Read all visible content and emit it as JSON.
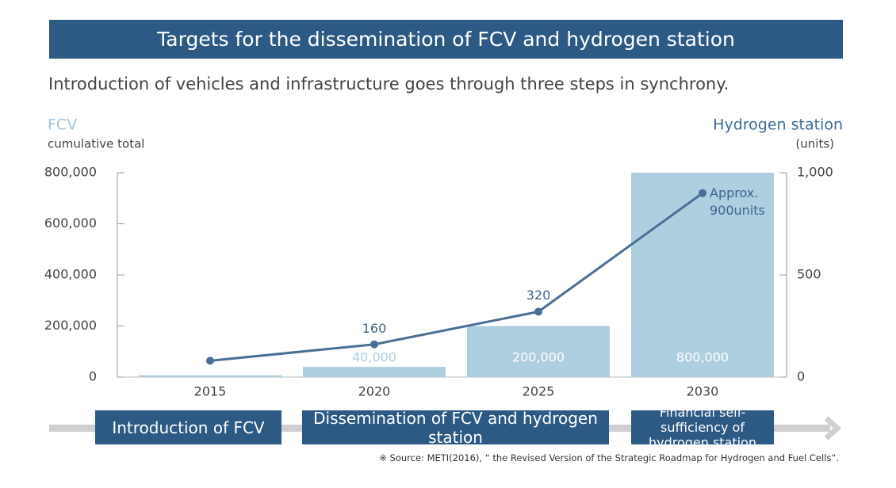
{
  "header": {
    "title": "Targets for the dissemination of FCV and hydrogen station",
    "subtitle": "Introduction of vehicles and infrastructure goes through three steps in synchrony."
  },
  "chart_data": {
    "type": "bar",
    "y_axis_title": "FCV",
    "y_axis_subtitle": "cumulative total",
    "y2_axis_title": "Hydrogen station",
    "y2_axis_subtitle": "(units)",
    "categories": [
      "2015",
      "2020",
      "2025",
      "2030"
    ],
    "series": [
      {
        "name": "FCV",
        "type": "bar",
        "color": "#aecfe0",
        "values": [
          7000,
          40000,
          200000,
          800000
        ],
        "value_labels": [
          null,
          "40,000",
          "200,000",
          "800,000"
        ]
      },
      {
        "name": "Hydrogen station",
        "type": "line",
        "axis": "y2",
        "color": "#4a6f96",
        "values": [
          80,
          160,
          320,
          900
        ],
        "value_labels": [
          null,
          "160",
          "320",
          "Approx. 900units"
        ]
      }
    ],
    "ylim": [
      0,
      800000
    ],
    "yticks": [
      0,
      {
        "value": 200000,
        "label": "200,000"
      },
      {
        "value": 400000,
        "label": "400,000"
      },
      {
        "value": 600000,
        "label": "600,000"
      },
      {
        "value": 800000,
        "label": "800,000"
      }
    ],
    "y2lim": [
      0,
      1000
    ],
    "y2ticks": [
      0,
      500,
      {
        "value": 1000,
        "label": "1,000"
      }
    ]
  },
  "phases": [
    "Introduction of FCV",
    "Dissemination of FCV and hydrogen station",
    "Financial self-sufficiency of hydrogen station"
  ],
  "footnote": "※ Source: METI(2016), “ the Revised Version of the Strategic Roadmap for Hydrogen and Fuel Cells”."
}
